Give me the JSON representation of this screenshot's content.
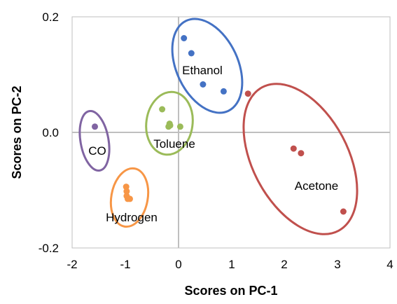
{
  "chart_data": {
    "type": "scatter",
    "title": "",
    "xlabel": "Scores on PC-1",
    "ylabel": "Scores on PC-2",
    "xlim": [
      -2,
      4
    ],
    "ylim": [
      -0.2,
      0.2
    ],
    "x_ticks": [
      "-2",
      "-1",
      "0",
      "1",
      "2",
      "3",
      "4"
    ],
    "y_ticks": [
      "0.2",
      "0.0",
      "-0.2"
    ],
    "grid": "zero lines only",
    "series": [
      {
        "name": "Ethanol",
        "color": "#4472C4",
        "points": [
          [
            0.11,
            0.163
          ],
          [
            0.25,
            0.137
          ],
          [
            0.47,
            0.083
          ],
          [
            0.86,
            0.071
          ]
        ]
      },
      {
        "name": "Acetone",
        "color": "#C0504D",
        "points": [
          [
            1.32,
            0.067
          ],
          [
            2.18,
            -0.028
          ],
          [
            2.32,
            -0.036
          ],
          [
            3.12,
            -0.137
          ]
        ]
      },
      {
        "name": "Toluene",
        "color": "#9BBB59",
        "points": [
          [
            -0.3,
            0.04
          ],
          [
            -0.18,
            0.01
          ],
          [
            -0.16,
            0.015
          ],
          [
            -0.15,
            0.012
          ],
          [
            0.04,
            0.01
          ]
        ]
      },
      {
        "name": "CO",
        "color": "#8064A2",
        "points": [
          [
            -1.57,
            0.01
          ]
        ]
      },
      {
        "name": "Hydrogen",
        "color": "#F79646",
        "points": [
          [
            -0.98,
            -0.094
          ],
          [
            -0.97,
            -0.102
          ],
          [
            -0.97,
            -0.11
          ],
          [
            -0.95,
            -0.115
          ],
          [
            -0.91,
            -0.115
          ]
        ]
      }
    ],
    "clusters": [
      {
        "label": "Ethanol",
        "color": "#4472C4"
      },
      {
        "label": "Acetone",
        "color": "#C0504D"
      },
      {
        "label": "Toluene",
        "color": "#9BBB59"
      },
      {
        "label": "CO",
        "color": "#8064A2"
      },
      {
        "label": "Hydrogen",
        "color": "#F79646"
      }
    ]
  }
}
